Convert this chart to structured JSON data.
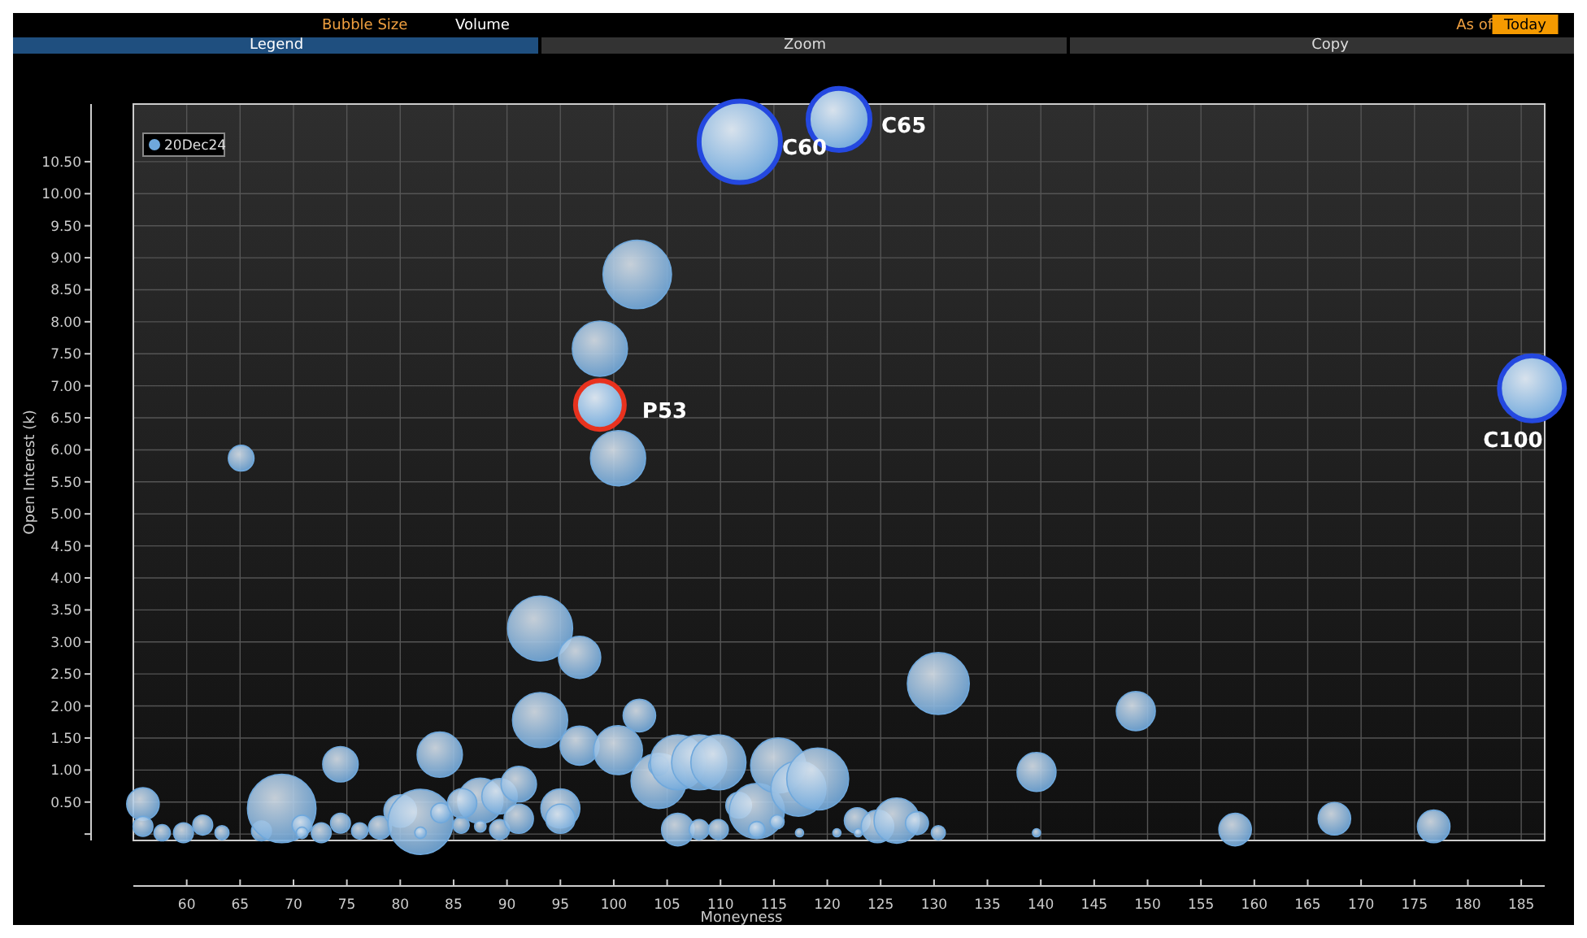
{
  "chart_data": {
    "type": "bubble",
    "xlabel": "Moneyness",
    "ylabel": "Open Interest (k)",
    "xlim": [
      55,
      187.2
    ],
    "xticks": [
      60,
      65,
      70,
      75,
      80,
      85,
      90,
      95,
      100,
      105,
      110,
      115,
      120,
      125,
      130,
      135,
      140,
      145,
      150,
      155,
      160,
      165,
      170,
      175,
      180,
      185
    ],
    "ylim": [
      -0.1,
      11.4
    ],
    "yticks": [
      {
        "value": 0,
        "label": null
      },
      {
        "value": 0.5,
        "label": "0.50"
      },
      {
        "value": 1,
        "label": "1.00"
      },
      {
        "value": 1.5,
        "label": "1.50"
      },
      {
        "value": 2,
        "label": "2.00"
      },
      {
        "value": 2.5,
        "label": "2.50"
      },
      {
        "value": 3,
        "label": "3.00"
      },
      {
        "value": 3.5,
        "label": "3.50"
      },
      {
        "value": 4,
        "label": "4.00"
      },
      {
        "value": 4.5,
        "label": "4.50"
      },
      {
        "value": 5,
        "label": "5.00"
      },
      {
        "value": 5.5,
        "label": "5.50"
      },
      {
        "value": 6,
        "label": "6.00"
      },
      {
        "value": 6.5,
        "label": "6.50"
      },
      {
        "value": 7,
        "label": "7.00"
      },
      {
        "value": 7.5,
        "label": "7.50"
      },
      {
        "value": 8,
        "label": "8.00"
      },
      {
        "value": 8.5,
        "label": "8.50"
      },
      {
        "value": 9,
        "label": "9.00"
      },
      {
        "value": 9.5,
        "label": "9.50"
      },
      {
        "value": 10,
        "label": "10.00"
      },
      {
        "value": 10.5,
        "label": "10.50"
      }
    ],
    "grid": true,
    "legend": "top left",
    "series": [
      {
        "name": "20Dec24",
        "color": "#6fa8dc",
        "x": [
          55.9,
          55.9,
          57.7,
          59.7,
          61.5,
          63.3,
          65.1,
          67.0,
          68.9,
          70.8,
          70.8,
          72.6,
          74.4,
          74.4,
          76.2,
          78.1,
          80.0,
          81.9,
          81.9,
          83.7,
          83.8,
          85.7,
          87.5,
          85.8,
          87.5,
          89.3,
          89.3,
          91.1,
          91.1,
          93.1,
          93.1,
          95.0,
          95.0,
          96.8,
          96.8,
          98.7,
          100.4,
          102.2,
          100.4,
          102.4,
          104.2,
          104.2,
          106.0,
          106.0,
          108.0,
          108.0,
          109.8,
          109.8,
          111.7,
          113.4,
          113.4,
          115.3,
          115.4,
          117.3,
          119.1,
          117.4,
          120.9,
          122.8,
          122.9,
          124.7,
          126.5,
          128.4,
          130.4,
          130.4,
          139.6,
          139.6,
          148.9,
          158.2,
          167.5,
          176.8
        ],
        "values": [
          0.47,
          0.12,
          0.02,
          0.02,
          0.14,
          0.02,
          5.87,
          0.05,
          0.4,
          0.14,
          0.02,
          0.02,
          0.17,
          1.09,
          0.05,
          0.1,
          0.36,
          0.19,
          0.02,
          1.24,
          0.33,
          0.14,
          0.52,
          0.48,
          0.12,
          0.59,
          0.07,
          0.78,
          0.24,
          3.21,
          1.78,
          0.4,
          0.24,
          2.76,
          1.38,
          7.58,
          5.87,
          8.74,
          1.31,
          1.85,
          0.83,
          1.07,
          1.12,
          0.07,
          1.12,
          0.07,
          1.12,
          0.07,
          0.45,
          0.36,
          0.07,
          0.19,
          1.07,
          0.71,
          0.86,
          0.02,
          0.02,
          0.21,
          0.02,
          0.12,
          0.21,
          0.17,
          0.02,
          2.35,
          0.97,
          0.02,
          1.92,
          0.07,
          0.24,
          0.12
        ],
        "sizes": [
          0.16,
          0.06,
          0.04,
          0.06,
          0.06,
          0.03,
          0.1,
          0.06,
          0.71,
          0.06,
          0.02,
          0.06,
          0.06,
          0.19,
          0.04,
          0.08,
          0.16,
          0.64,
          0.02,
          0.31,
          0.06,
          0.04,
          0.31,
          0.13,
          0.02,
          0.19,
          0.06,
          0.19,
          0.13,
          0.64,
          0.46,
          0.23,
          0.13,
          0.27,
          0.23,
          0.46,
          0.46,
          0.71,
          0.36,
          0.16,
          0.46,
          0.06,
          0.46,
          0.16,
          0.46,
          0.06,
          0.46,
          0.06,
          0.1,
          0.46,
          0.04,
          0.03,
          0.46,
          0.46,
          0.58,
          0.01,
          0.01,
          0.1,
          0.01,
          0.16,
          0.31,
          0.08,
          0.03,
          0.58,
          0.23,
          0.01,
          0.23,
          0.16,
          0.16,
          0.16
        ]
      },
      {
        "color": "#2448e0",
        "x": [
          111.8,
          121.1,
          186.0
        ],
        "values": [
          10.81,
          11.16,
          6.96
        ],
        "sizes": [
          1,
          0.58,
          0.64
        ]
      },
      {
        "color": "#e8321e",
        "x": [
          98.7
        ],
        "values": [
          6.7
        ],
        "sizes": [
          0.36
        ]
      }
    ],
    "annotations": [
      {
        "text": "C60",
        "x": 111.8,
        "y": 10.81
      },
      {
        "text": "C65",
        "x": 121.1,
        "y": 11.16
      },
      {
        "text": "C100",
        "x": 186.0,
        "y": 6.96
      },
      {
        "text": "P53",
        "x": 98.7,
        "y": 6.7
      },
      "Bubble Size",
      "Volume",
      "As of",
      "Today",
      "Legend",
      "Zoom",
      "Copy"
    ]
  }
}
